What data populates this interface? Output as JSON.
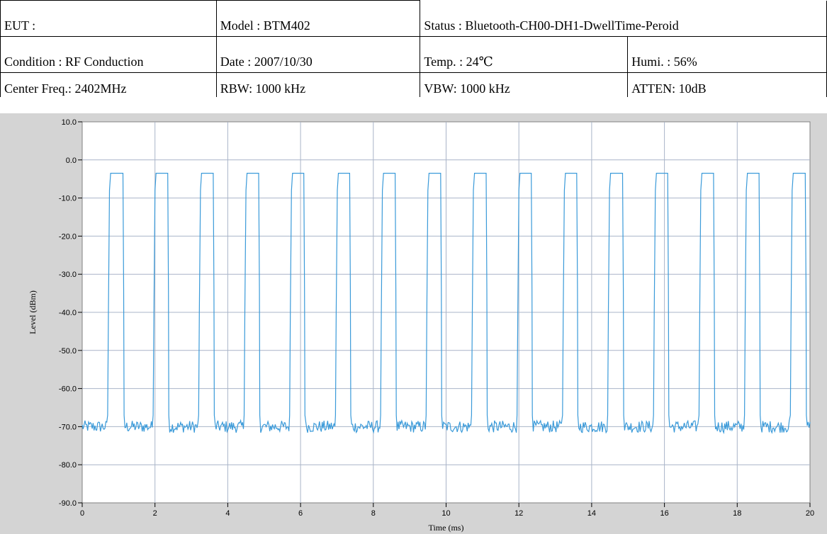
{
  "header": {
    "row1": {
      "eut": "EUT :",
      "model": "Model : BTM402",
      "status": "Status : Bluetooth-CH00-DH1-DwellTime-Peroid"
    },
    "row2": {
      "condition": "Condition : RF Conduction",
      "date": "Date : 2007/10/30",
      "temp": "Temp. : 24℃",
      "humi": "Humi. : 56%"
    },
    "row3": {
      "center_freq": "Center Freq.: 2402MHz",
      "rbw": "RBW: 1000 kHz",
      "vbw": "VBW: 1000 kHz",
      "atten": "ATTEN: 10dB"
    }
  },
  "chart_data": {
    "type": "line",
    "title": "",
    "xlabel": "Time (ms)",
    "ylabel": "Level (dBm)",
    "xlim": [
      0,
      20
    ],
    "ylim": [
      -90,
      10
    ],
    "xticks": [
      0,
      2,
      4,
      6,
      8,
      10,
      12,
      14,
      16,
      18,
      20
    ],
    "xtick_labels": [
      "0",
      "2",
      "4",
      "6",
      "8",
      "10",
      "12",
      "14",
      "16",
      "18",
      "20"
    ],
    "yticks": [
      10,
      0,
      -10,
      -20,
      -30,
      -40,
      -50,
      -60,
      -70,
      -80,
      -90
    ],
    "ytick_labels": [
      "10.0",
      "0.0",
      "-10.0",
      "-20.0",
      "-30.0",
      "-40.0",
      "-50.0",
      "-60.0",
      "-70.0",
      "-80.0",
      "-90.0"
    ],
    "grid": true,
    "line_color": "#3a9ad9",
    "series": [
      {
        "pulse_high_dbm": -3.5,
        "noise_floor_dbm": -70,
        "pulses_ms": [
          [
            0.7,
            1.15
          ],
          [
            1.95,
            2.38
          ],
          [
            3.2,
            3.63
          ],
          [
            4.45,
            4.88
          ],
          [
            5.7,
            6.12
          ],
          [
            6.96,
            7.38
          ],
          [
            8.2,
            8.63
          ],
          [
            9.45,
            9.88
          ],
          [
            10.7,
            11.13
          ],
          [
            11.95,
            12.37
          ],
          [
            13.2,
            13.62
          ],
          [
            14.44,
            14.88
          ],
          [
            15.7,
            16.12
          ],
          [
            16.95,
            17.38
          ],
          [
            18.2,
            18.63
          ],
          [
            19.46,
            19.9
          ]
        ]
      }
    ]
  }
}
